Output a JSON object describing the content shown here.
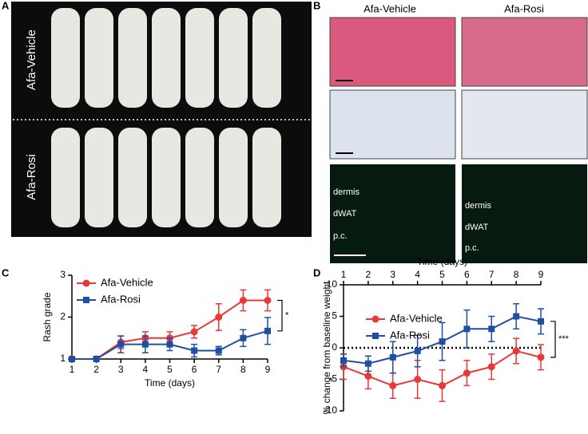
{
  "panel_labels": [
    "A",
    "B",
    "C",
    "D"
  ],
  "panel_a": {
    "groups": [
      "Afa-Vehicle",
      "Afa-Rosi"
    ]
  },
  "panel_b": {
    "columns": [
      "Afa-Vehicle",
      "Afa-Rosi"
    ],
    "left_labels": [
      "dermis",
      "dWAT",
      "p.c."
    ],
    "right_labels": [
      "dermis",
      "dWAT",
      "p.c."
    ]
  },
  "chart_data": [
    {
      "type": "line",
      "xlabel": "Time (days)",
      "ylabel": "Rash grade",
      "x": [
        1,
        2,
        3,
        4,
        5,
        6,
        7,
        8,
        9
      ],
      "xlim": [
        1,
        9
      ],
      "xticks": [
        1,
        2,
        3,
        4,
        5,
        6,
        7,
        8,
        9
      ],
      "ylim": [
        1,
        3
      ],
      "yticks": [
        1,
        2,
        3
      ],
      "x_axis_position": "bottom",
      "zero_line": false,
      "annotation": "*",
      "series": [
        {
          "name": "Afa-Vehicle",
          "color": "#e8393a",
          "marker": "circle",
          "values": [
            1,
            1,
            1.4,
            1.5,
            1.5,
            1.65,
            2.0,
            2.4,
            2.4
          ],
          "errors": [
            0,
            0,
            0.15,
            0.15,
            0.15,
            0.15,
            0.32,
            0.25,
            0.25
          ]
        },
        {
          "name": "Afa-Rosi",
          "color": "#1f4fa0",
          "marker": "square",
          "values": [
            1,
            1,
            1.35,
            1.35,
            1.35,
            1.2,
            1.2,
            1.5,
            1.67
          ],
          "errors": [
            0,
            0,
            0.2,
            0.2,
            0.15,
            0.15,
            0.1,
            0.2,
            0.32
          ]
        }
      ]
    },
    {
      "type": "line",
      "xlabel": "Time (days)",
      "ylabel": "% change from baseline weight",
      "x": [
        1,
        2,
        3,
        4,
        5,
        6,
        7,
        8,
        9
      ],
      "xlim": [
        1,
        9
      ],
      "xticks": [
        1,
        2,
        3,
        4,
        5,
        6,
        7,
        8,
        9
      ],
      "ylim": [
        -10,
        10
      ],
      "yticks": [
        -10,
        -5,
        0,
        5,
        10
      ],
      "x_axis_position": "top",
      "zero_line": true,
      "annotation": "***",
      "series": [
        {
          "name": "Afa-Vehicle",
          "color": "#e8393a",
          "marker": "circle",
          "values": [
            -3,
            -4.5,
            -6,
            -5,
            -6,
            -4,
            -3,
            -0.5,
            -1.5
          ],
          "errors": [
            2,
            2,
            2,
            3,
            2.5,
            2,
            2,
            2,
            2
          ]
        },
        {
          "name": "Afa-Rosi",
          "color": "#1f4fa0",
          "marker": "square",
          "values": [
            -2,
            -2.5,
            -1.5,
            -0.5,
            1,
            3,
            3,
            5,
            4.2
          ],
          "errors": [
            1,
            1.2,
            2.5,
            2.5,
            3,
            3,
            2,
            2,
            2
          ]
        }
      ]
    }
  ]
}
